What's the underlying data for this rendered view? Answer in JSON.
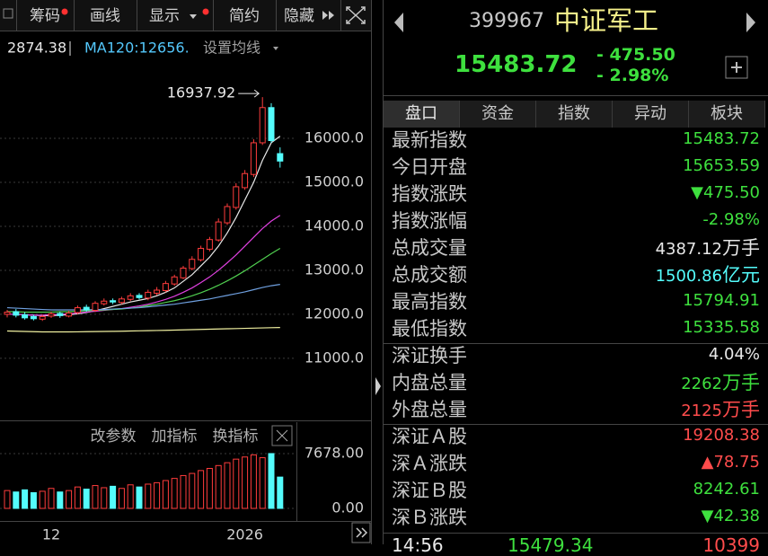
{
  "toolbar": {
    "items": [
      "筹码",
      "画线",
      "显示",
      "简约",
      "隐藏"
    ]
  },
  "legend": {
    "last": "2874.38",
    "ma": "MA120:12656.",
    "settings": "设置均线"
  },
  "indicator_buttons": [
    "改参数",
    "加指标",
    "换指标"
  ],
  "chart_data": {
    "type": "candlestick",
    "up_color": "#ff3c3c",
    "down_color": "#54fcfc",
    "categories": [
      null,
      null,
      null,
      null,
      null,
      "12",
      null,
      null,
      null,
      null,
      null,
      null,
      null,
      null,
      null,
      null,
      null,
      null,
      null,
      null,
      null,
      null,
      null,
      null,
      null,
      null,
      null,
      "2026",
      null,
      null,
      null,
      null
    ],
    "open": [
      12000,
      12060,
      11990,
      11950,
      11890,
      11960,
      12020,
      11960,
      12040,
      12160,
      12090,
      12240,
      12310,
      12270,
      12340,
      12430,
      12370,
      12480,
      12540,
      12690,
      12830,
      13040,
      13240,
      13480,
      13690,
      14080,
      14430,
      14880,
      15180,
      15900,
      16700,
      15653.59
    ],
    "high": [
      12100,
      12120,
      12050,
      11990,
      11990,
      12060,
      12060,
      12080,
      12200,
      12220,
      12300,
      12360,
      12360,
      12400,
      12480,
      12480,
      12560,
      12620,
      12760,
      12900,
      13100,
      13320,
      13560,
      13760,
      14180,
      14520,
      14980,
      15280,
      15980,
      16937.92,
      16800,
      15794.91
    ],
    "low": [
      11930,
      11930,
      11880,
      11860,
      11850,
      11920,
      11920,
      11930,
      12000,
      12060,
      12050,
      12200,
      12230,
      12230,
      12300,
      12340,
      12320,
      12430,
      12500,
      12650,
      12800,
      13000,
      13200,
      13430,
      13650,
      14030,
      14380,
      14830,
      15120,
      15850,
      15900,
      15335.58
    ],
    "close": [
      12050,
      11980,
      11920,
      11900,
      11950,
      12010,
      11970,
      12030,
      12150,
      12100,
      12250,
      12300,
      12280,
      12350,
      12420,
      12380,
      12500,
      12550,
      12700,
      12850,
      13050,
      13250,
      13500,
      13700,
      14100,
      14450,
      14900,
      15200,
      15900,
      16700,
      15950,
      15483.72
    ],
    "ma_lines": [
      {
        "color": "#e8e8e8",
        "values": [
          12000,
          12000,
          11990,
          11980,
          11970,
          11970,
          11980,
          11990,
          12010,
          12040,
          12080,
          12130,
          12180,
          12230,
          12280,
          12320,
          12360,
          12420,
          12500,
          12600,
          12750,
          12900,
          13100,
          13300,
          13550,
          13850,
          14200,
          14600,
          15000,
          15500,
          15900,
          16050
        ]
      },
      {
        "color": "#e040e0",
        "values": [
          12000,
          12000,
          11990,
          11980,
          11980,
          11990,
          12000,
          12010,
          12030,
          12050,
          12070,
          12090,
          12110,
          12130,
          12160,
          12190,
          12230,
          12280,
          12340,
          12410,
          12500,
          12600,
          12720,
          12850,
          13000,
          13170,
          13350,
          13550,
          13750,
          13950,
          14120,
          14250
        ]
      },
      {
        "color": "#50d050",
        "values": [
          12060,
          12060,
          12050,
          12050,
          12050,
          12050,
          12060,
          12060,
          12070,
          12080,
          12090,
          12100,
          12110,
          12120,
          12140,
          12160,
          12200,
          12230,
          12270,
          12310,
          12360,
          12420,
          12490,
          12570,
          12660,
          12760,
          12870,
          12990,
          13120,
          13250,
          13380,
          13500
        ]
      },
      {
        "color": "#6fa0e0",
        "values": [
          12150,
          12140,
          12130,
          12120,
          12110,
          12100,
          12100,
          12100,
          12100,
          12100,
          12110,
          12110,
          12120,
          12130,
          12140,
          12150,
          12170,
          12190,
          12210,
          12230,
          12260,
          12290,
          12320,
          12350,
          12390,
          12430,
          12470,
          12510,
          12560,
          12610,
          12650,
          12680
        ]
      },
      {
        "color": "#f0f0a0",
        "values": [
          11620,
          11615,
          11610,
          11605,
          11600,
          11600,
          11600,
          11600,
          11602,
          11605,
          11608,
          11610,
          11613,
          11616,
          11620,
          11624,
          11628,
          11632,
          11636,
          11641,
          11646,
          11651,
          11656,
          11661,
          11666,
          11671,
          11676,
          11681,
          11686,
          11691,
          11696,
          11700
        ]
      }
    ],
    "ylim": [
      9650,
      18370
    ],
    "yticks": [
      {
        "value": 16000,
        "label": "16000.0"
      },
      {
        "value": 15000,
        "label": "15000.0"
      },
      {
        "value": 14000,
        "label": "14000.0"
      },
      {
        "value": 13000,
        "label": "13000.0"
      },
      {
        "value": 12000,
        "label": "12000.0"
      },
      {
        "value": 11000,
        "label": "11000.0"
      }
    ],
    "volume": [
      2500,
      2300,
      2600,
      2200,
      2400,
      2800,
      2300,
      2500,
      3000,
      2700,
      3200,
      2900,
      3100,
      2800,
      3300,
      3000,
      3400,
      3600,
      3900,
      4200,
      4600,
      4900,
      5300,
      5600,
      6000,
      6400,
      6900,
      7200,
      7500,
      7100,
      7678,
      4387.12
    ],
    "vlim": [
      0,
      11450
    ],
    "vticks": [
      {
        "value": 7678,
        "label": "7678.00"
      },
      {
        "value": 0,
        "label": "0.00"
      }
    ]
  },
  "quote": {
    "code": "399967",
    "name": "中证军工",
    "price": "15483.72",
    "change": "- 475.50",
    "change_pct": "- 2.98%",
    "tabs": [
      "盘口",
      "资金",
      "指数",
      "异动",
      "板块"
    ],
    "rows": [
      {
        "label": "最新指数",
        "value": "15483.72",
        "color": "#3ee03e"
      },
      {
        "label": "今日开盘",
        "value": "15653.59",
        "color": "#3ee03e"
      },
      {
        "label": "指数涨跌",
        "value": "▼475.50",
        "color": "#3ee03e"
      },
      {
        "label": "指数涨幅",
        "value": "-2.98%",
        "color": "#3ee03e"
      },
      {
        "label": "总成交量",
        "value": "4387.12",
        "unit": "万手",
        "color": "#e8e8e8"
      },
      {
        "label": "总成交额",
        "value": "1500.86",
        "unit": "亿元",
        "color": "#54fcfc"
      },
      {
        "label": "最高指数",
        "value": "15794.91",
        "color": "#3ee03e"
      },
      {
        "label": "最低指数",
        "value": "15335.58",
        "color": "#3ee03e"
      },
      {
        "label": "深证换手",
        "value": "4.04%",
        "color": "#e8e8e8"
      },
      {
        "label": "内盘总量",
        "value": "2262",
        "unit": "万手",
        "color": "#3ee03e"
      },
      {
        "label": "外盘总量",
        "value": "2125",
        "unit": "万手",
        "color": "#ff4c4c"
      },
      {
        "label": "深证Ａ股",
        "value": "19208.38",
        "color": "#ff4c4c"
      },
      {
        "label": "深Ａ涨跌",
        "value": "▲78.75",
        "color": "#ff4c4c"
      },
      {
        "label": "深证Ｂ股",
        "value": "8242.61",
        "color": "#3ee03e"
      },
      {
        "label": "深Ｂ涨跌",
        "value": "▼42.38",
        "color": "#3ee03e"
      }
    ],
    "tick_row": {
      "time": "14:56",
      "price": "15479.34",
      "volume": "10399"
    }
  }
}
